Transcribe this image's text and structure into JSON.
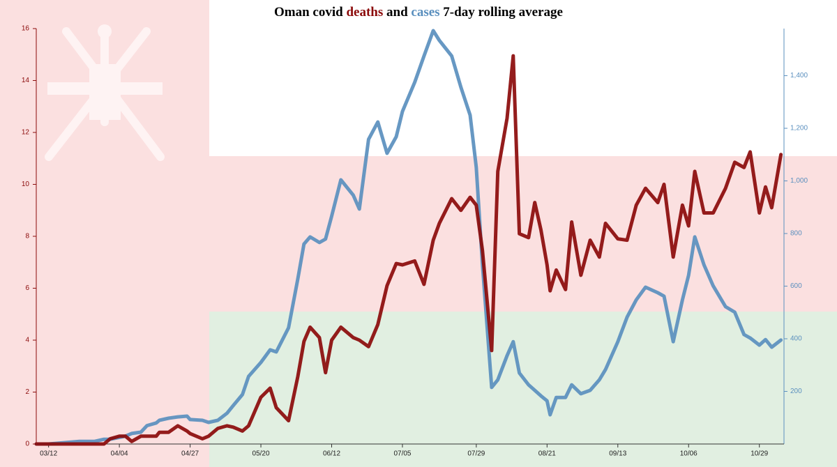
{
  "chart_data": {
    "type": "line",
    "title_start": "Oman covid ",
    "title_join": " and ",
    "title_end": " 7-day rolling average",
    "x": [
      "03/08",
      "03/12",
      "03/17",
      "03/22",
      "03/27",
      "03/30",
      "04/01",
      "04/04",
      "04/06",
      "04/08",
      "04/11",
      "04/13",
      "04/16",
      "04/17",
      "04/20",
      "04/23",
      "04/26",
      "04/27",
      "05/01",
      "05/03",
      "05/06",
      "05/09",
      "05/11",
      "05/14",
      "05/16",
      "05/20",
      "05/23",
      "05/25",
      "05/29",
      "06/01",
      "06/03",
      "06/05",
      "06/08",
      "06/10",
      "06/12",
      "06/15",
      "06/19",
      "06/21",
      "06/24",
      "06/27",
      "06/30",
      "07/03",
      "07/05",
      "07/09",
      "07/12",
      "07/15",
      "07/17",
      "07/21",
      "07/24",
      "07/27",
      "07/29",
      "07/31",
      "08/03",
      "08/05",
      "08/08",
      "08/10",
      "08/12",
      "08/15",
      "08/17",
      "08/19",
      "08/21",
      "08/22",
      "08/24",
      "08/27",
      "08/29",
      "09/01",
      "09/04",
      "09/07",
      "09/09",
      "09/13",
      "09/16",
      "09/19",
      "09/22",
      "09/26",
      "09/28",
      "10/01",
      "10/04",
      "10/06",
      "10/08",
      "10/11",
      "10/14",
      "10/18",
      "10/21",
      "10/24",
      "10/26",
      "10/29",
      "10/31",
      "11/02",
      "11/05"
    ],
    "series": [
      {
        "name": "cases",
        "color": "#5a8fbe",
        "axis": "y2",
        "values": [
          0,
          0,
          5,
          10,
          10,
          18,
          18,
          25,
          30,
          40,
          45,
          70,
          80,
          90,
          98,
          103,
          106,
          93,
          90,
          82,
          90,
          117,
          146,
          188,
          257,
          310,
          358,
          350,
          442,
          628,
          760,
          787,
          766,
          779,
          866,
          1004,
          946,
          893,
          1158,
          1224,
          1105,
          1168,
          1264,
          1375,
          1475,
          1571,
          1534,
          1475,
          1356,
          1250,
          1052,
          681,
          215,
          244,
          336,
          389,
          270,
          225,
          204,
          183,
          164,
          111,
          177,
          177,
          225,
          191,
          204,
          244,
          283,
          389,
          482,
          548,
          596,
          575,
          562,
          389,
          548,
          641,
          787,
          681,
          601,
          522,
          501,
          416,
          403,
          376,
          397,
          368,
          395
        ]
      },
      {
        "name": "deaths",
        "color": "#8b0a0a",
        "values": [
          0,
          0,
          0,
          0,
          0,
          0,
          0.2,
          0.3,
          0.3,
          0.1,
          0.3,
          0.3,
          0.3,
          0.45,
          0.45,
          0.7,
          0.5,
          0.4,
          0.2,
          0.3,
          0.6,
          0.7,
          0.65,
          0.5,
          0.7,
          1.8,
          2.15,
          1.4,
          0.9,
          2.6,
          3.95,
          4.5,
          4.1,
          2.75,
          4.0,
          4.5,
          4.1,
          4.0,
          3.75,
          4.6,
          6.1,
          6.95,
          6.9,
          7.05,
          6.15,
          7.85,
          8.5,
          9.45,
          9.0,
          9.5,
          9.2,
          7.45,
          3.6,
          10.5,
          12.55,
          14.95,
          8.1,
          7.95,
          9.3,
          8.25,
          6.9,
          5.9,
          6.7,
          5.95,
          8.55,
          6.5,
          7.85,
          7.2,
          8.5,
          7.9,
          7.85,
          9.2,
          9.85,
          9.3,
          10.0,
          7.2,
          9.2,
          8.4,
          10.5,
          8.9,
          8.9,
          9.85,
          10.85,
          10.65,
          11.25,
          8.9,
          9.9,
          9.1,
          11.15
        ]
      }
    ],
    "xlim": [
      "03/08",
      "11/06"
    ],
    "xticks": [
      "03/12",
      "04/04",
      "04/27",
      "05/20",
      "06/12",
      "07/05",
      "07/29",
      "08/21",
      "09/13",
      "10/06",
      "10/29"
    ],
    "ylim": [
      0,
      16
    ],
    "yticks": [
      0,
      2,
      4,
      6,
      8,
      10,
      12,
      14,
      16
    ],
    "y2lim": [
      0,
      1579
    ],
    "y2ticks": [
      200,
      400,
      600,
      800,
      {
        "value": 1000,
        "label": "1,000"
      },
      {
        "value": 1200,
        "label": "1,200"
      },
      {
        "value": 1400,
        "label": "1,400"
      }
    ]
  }
}
